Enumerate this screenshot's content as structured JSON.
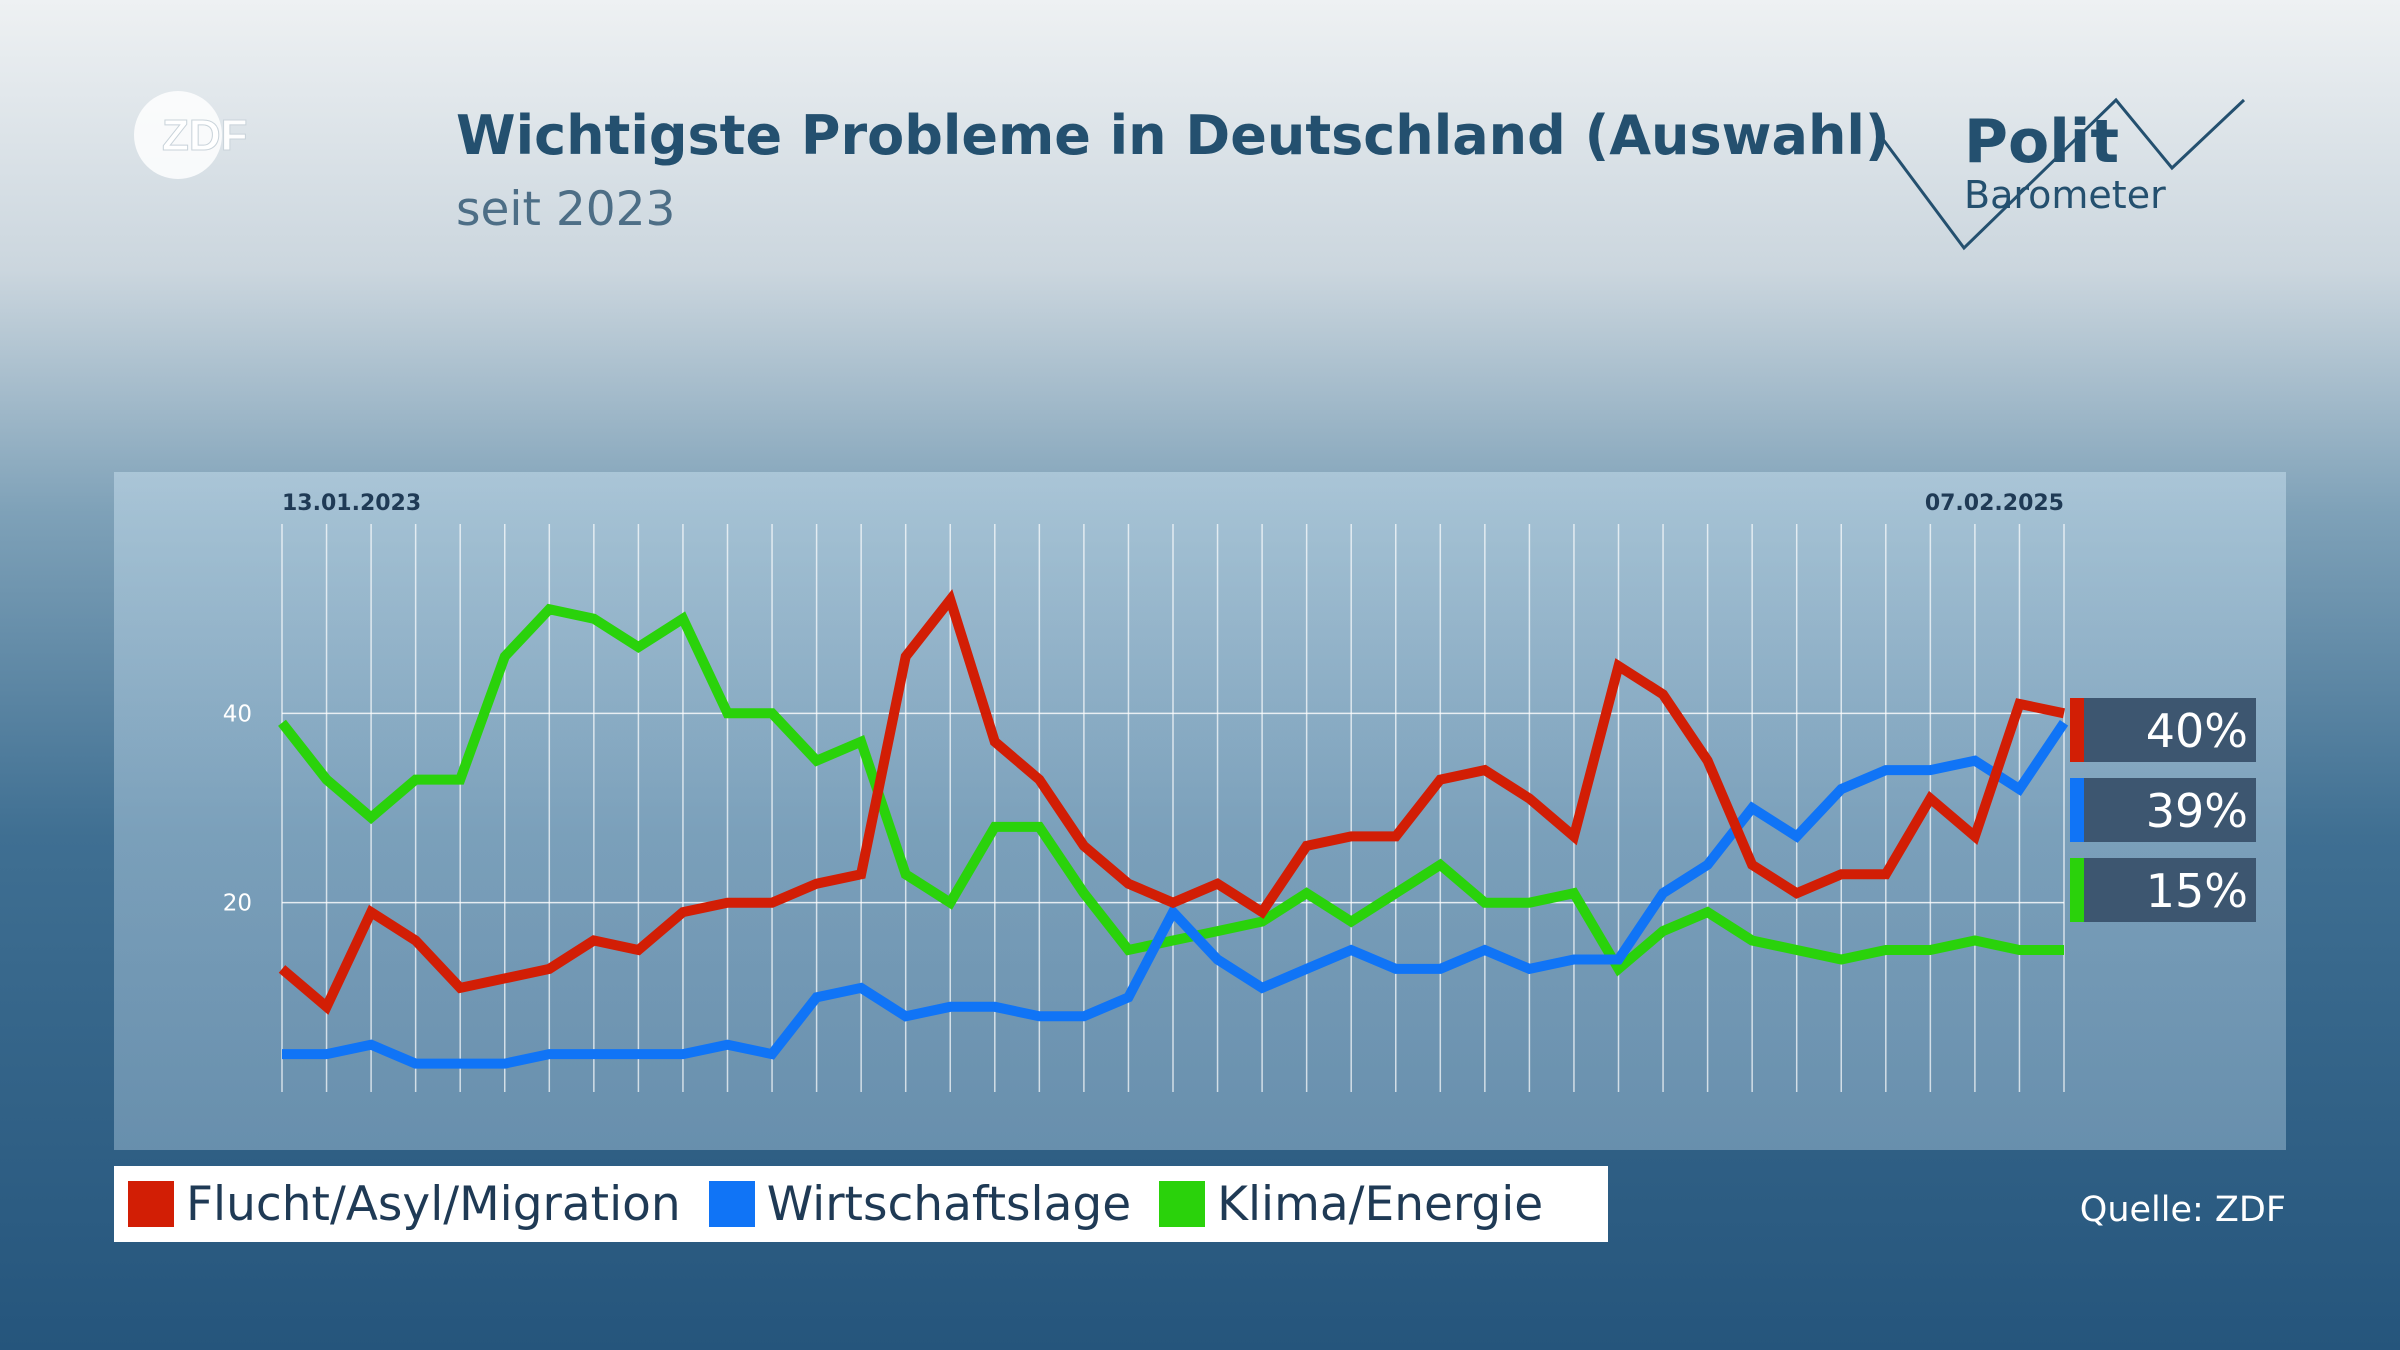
{
  "header": {
    "brand": "ZDF",
    "title": "Wichtigste Probleme in Deutschland (Auswahl)",
    "subtitle": "seit 2023",
    "logo_line1": "Polit",
    "logo_line2": "Barometer"
  },
  "chart_data": {
    "type": "line",
    "title": "Wichtigste Probleme in Deutschland (Auswahl)",
    "subtitle": "seit 2023",
    "x_start_label": "13.01.2023",
    "x_end_label": "07.02.2025",
    "x_count": 41,
    "ylim": [
      0,
      60
    ],
    "yticks": [
      20,
      40
    ],
    "grid": true,
    "legend_position": "bottom",
    "series": [
      {
        "name": "Flucht/Asyl/Migration",
        "color": "#d21e05",
        "end_label": "40%",
        "values": [
          13,
          9,
          19,
          16,
          11,
          12,
          13,
          16,
          15,
          19,
          20,
          20,
          22,
          23,
          46,
          52,
          37,
          33,
          26,
          22,
          20,
          22,
          19,
          26,
          27,
          27,
          33,
          34,
          31,
          27,
          45,
          42,
          35,
          24,
          21,
          23,
          23,
          31,
          27,
          41,
          40
        ]
      },
      {
        "name": "Wirtschaftslage",
        "color": "#1074f6",
        "end_label": "39%",
        "values": [
          4,
          4,
          5,
          3,
          3,
          3,
          4,
          4,
          4,
          4,
          5,
          4,
          10,
          11,
          8,
          9,
          9,
          8,
          8,
          10,
          19,
          14,
          11,
          13,
          15,
          13,
          13,
          15,
          13,
          14,
          14,
          21,
          24,
          30,
          27,
          32,
          34,
          34,
          35,
          32,
          39
        ]
      },
      {
        "name": "Klima/Energie",
        "color": "#2ad20b",
        "end_label": "15%",
        "values": [
          39,
          33,
          29,
          33,
          33,
          46,
          51,
          50,
          47,
          50,
          40,
          40,
          35,
          37,
          23,
          20,
          28,
          28,
          21,
          15,
          16,
          17,
          18,
          21,
          18,
          21,
          24,
          20,
          20,
          21,
          13,
          17,
          19,
          16,
          15,
          14,
          15,
          15,
          16,
          15,
          15
        ]
      }
    ]
  },
  "footer": {
    "source": "Quelle: ZDF"
  }
}
